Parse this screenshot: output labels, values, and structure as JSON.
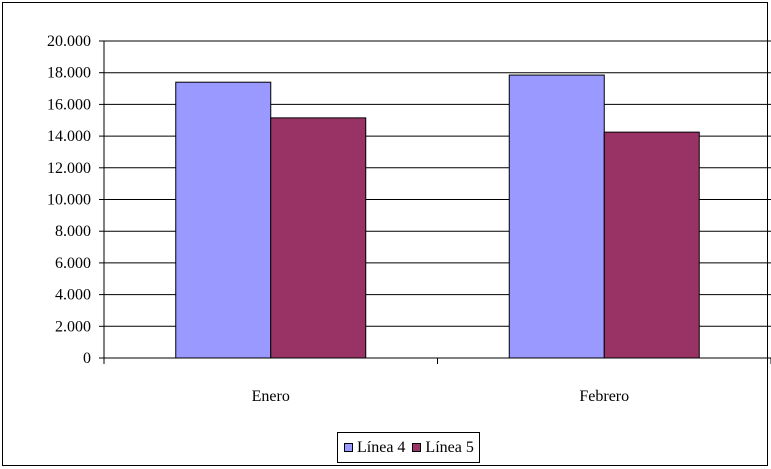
{
  "chart_data": {
    "type": "bar",
    "categories": [
      "Enero",
      "Febrero"
    ],
    "series": [
      {
        "name": "Línea 4",
        "values": [
          17400,
          17850
        ],
        "color": "#9999ff"
      },
      {
        "name": "Línea 5",
        "values": [
          15150,
          14250
        ],
        "color": "#993366"
      }
    ],
    "ylim": [
      0,
      20000
    ],
    "y_ticks": [
      0,
      2000,
      4000,
      6000,
      8000,
      10000,
      12000,
      14000,
      16000,
      18000,
      20000
    ],
    "y_tick_labels": [
      "0",
      "2.000",
      "4.000",
      "6.000",
      "8.000",
      "10.000",
      "12.000",
      "14.000",
      "16.000",
      "18.000",
      "20.000"
    ],
    "grid": true,
    "legend_position": "bottom-center"
  }
}
